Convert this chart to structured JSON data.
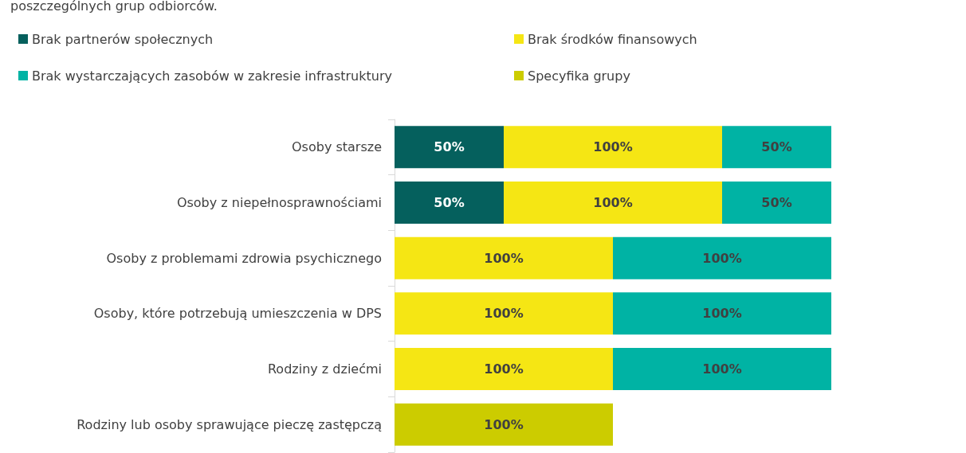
{
  "chart_data": {
    "type": "bar",
    "orientation": "horizontal",
    "stacked": true,
    "title": "poszczególnych grup odbiorców.",
    "categories": [
      "Osoby starsze",
      "Osoby z niepełnosprawnościami",
      "Osoby z problemami zdrowia psychicznego",
      "Osoby, które potrzebują umieszczenia w DPS",
      "Rodziny z dziećmi",
      "Rodziny lub osoby sprawujące pieczę zastępczą"
    ],
    "series": [
      {
        "name": "Brak partnerów społecznych",
        "color": "#05605d",
        "values": [
          50,
          50,
          null,
          null,
          null,
          null
        ],
        "value_labels": [
          "50%",
          "50%",
          null,
          null,
          null,
          null
        ]
      },
      {
        "name": "Brak środków finansowych",
        "color": "#f5e614",
        "values": [
          100,
          100,
          100,
          100,
          100,
          null
        ],
        "value_labels": [
          "100%",
          "100%",
          "100%",
          "100%",
          "100%",
          null
        ]
      },
      {
        "name": "Brak wystarczających zasobów w zakresie infrastruktury",
        "color": "#00b3a4",
        "values": [
          50,
          50,
          100,
          100,
          100,
          null
        ],
        "value_labels": [
          "50%",
          "50%",
          "100%",
          "100%",
          "100%",
          null
        ]
      },
      {
        "name": "Specyfika grupy",
        "color": "#cccc00",
        "values": [
          null,
          null,
          null,
          null,
          null,
          100
        ],
        "value_labels": [
          null,
          null,
          null,
          null,
          null,
          "100%"
        ]
      }
    ],
    "xlim": [
      0,
      200
    ],
    "legend": "top left"
  }
}
